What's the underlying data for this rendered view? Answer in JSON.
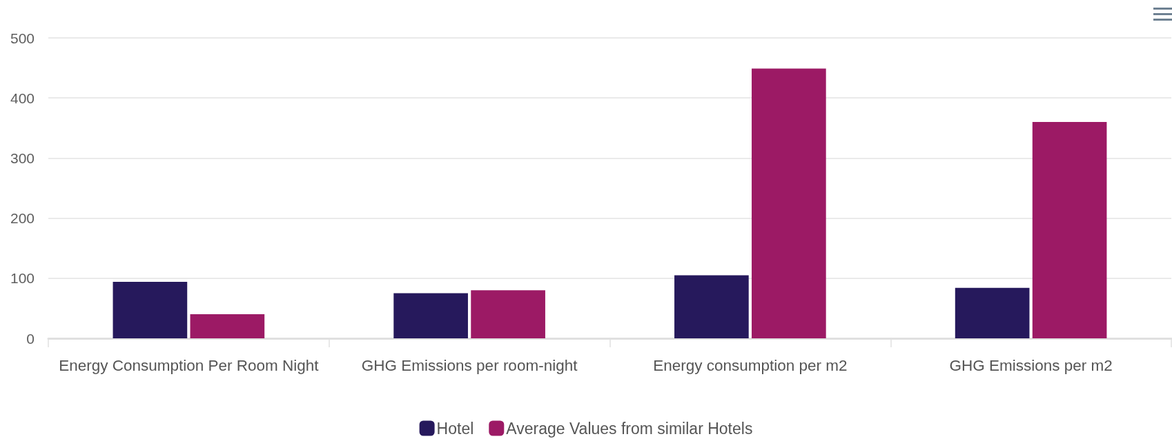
{
  "chart_data": {
    "type": "bar",
    "categories": [
      "Energy Consumption Per Room Night",
      "GHG Emissions per room-night",
      "Energy consumption per m2",
      "GHG Emissions per m2"
    ],
    "series": [
      {
        "name": "Hotel",
        "color": "#26195c",
        "values": [
          94,
          75,
          105,
          84
        ]
      },
      {
        "name": "Average Values from similar Hotels",
        "color": "#9c1a65",
        "values": [
          40,
          80,
          449,
          360
        ]
      }
    ],
    "ylim": [
      0,
      500
    ],
    "yticks": [
      0,
      100,
      200,
      300,
      400,
      500
    ],
    "grid": "y",
    "legend": "bottom"
  }
}
